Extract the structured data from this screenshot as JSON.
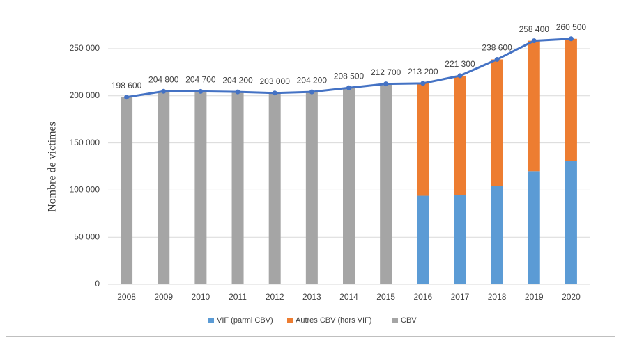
{
  "chart_data": {
    "type": "bar",
    "y_label": "Nombre de victimes",
    "categories": [
      "2008",
      "2009",
      "2010",
      "2011",
      "2012",
      "2013",
      "2014",
      "2015",
      "2016",
      "2017",
      "2018",
      "2019",
      "2020"
    ],
    "series": [
      {
        "name": "VIF (parmi CBV)",
        "color": "#5b9bd5",
        "values": [
          null,
          null,
          null,
          null,
          null,
          null,
          null,
          null,
          94000,
          95000,
          104500,
          120000,
          131000
        ]
      },
      {
        "name": "Autres CBV (hors VIF)",
        "color": "#ed7d31",
        "values": [
          null,
          null,
          null,
          null,
          null,
          null,
          null,
          null,
          119200,
          126300,
          134100,
          138400,
          129500
        ]
      },
      {
        "name": "CBV",
        "color": "#a5a5a5",
        "values": [
          198600,
          204800,
          204700,
          204200,
          203000,
          204200,
          208500,
          212700,
          null,
          null,
          null,
          null,
          null
        ]
      }
    ],
    "line": {
      "color": "#4472c4",
      "values": [
        198600,
        204800,
        204700,
        204200,
        203000,
        204200,
        208500,
        212700,
        213200,
        221300,
        238600,
        258400,
        260500
      ],
      "value_labels": [
        "198 600",
        "204 800",
        "204 700",
        "204 200",
        "203 000",
        "204 200",
        "208 500",
        "212 700",
        "213 200",
        "221 300",
        "238 600",
        "258 400",
        "260 500"
      ]
    },
    "ylim": [
      0,
      280000
    ],
    "yticks": [
      0,
      {
        "value": 50000,
        "label": "50 000"
      },
      {
        "value": 100000,
        "label": "100 000"
      },
      {
        "value": 150000,
        "label": "150 000"
      },
      {
        "value": 200000,
        "label": "200 000"
      },
      {
        "value": 250000,
        "label": "250 000"
      }
    ],
    "grid": true,
    "legend": "bottom"
  }
}
